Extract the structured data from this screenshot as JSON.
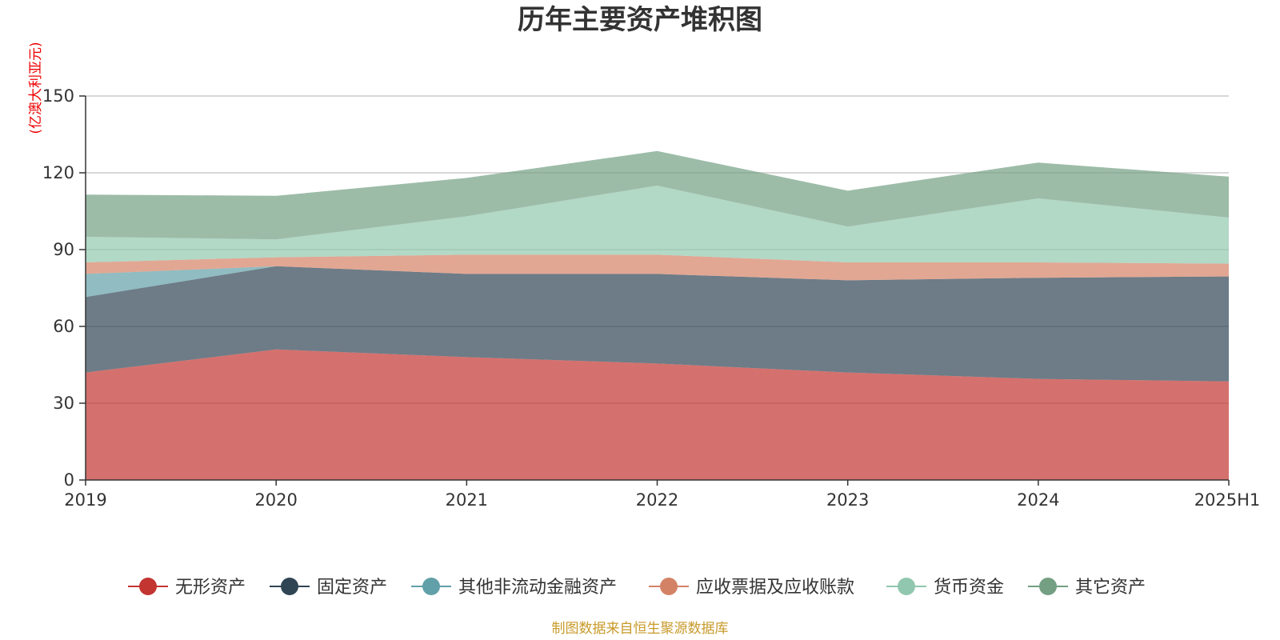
{
  "chart_data": {
    "type": "area",
    "stacked": true,
    "title": "历年主要资产堆积图",
    "ylabel": "(亿澳大利亚元)",
    "x": [
      "2019",
      "2020",
      "2021",
      "2022",
      "2023",
      "2024",
      "2025H1"
    ],
    "ylim": [
      0,
      150
    ],
    "yticks": [
      0,
      30,
      60,
      90,
      120,
      150
    ],
    "grid": true,
    "legend_position": "bottom",
    "series": [
      {
        "name": "无形资产",
        "values": [
          42,
          51,
          48,
          45.5,
          42,
          39.5,
          38.5
        ],
        "color": "#c23531"
      },
      {
        "name": "固定资产",
        "values": [
          29.5,
          32.5,
          32.5,
          35,
          36,
          39.5,
          41
        ],
        "color": "#2f4554"
      },
      {
        "name": "其他非流动金融资产",
        "values": [
          9,
          0,
          0,
          0,
          0,
          0,
          0
        ],
        "color": "#61a0a8"
      },
      {
        "name": "应收票据及应收账款",
        "values": [
          4.5,
          3.5,
          7.5,
          7.5,
          7,
          6,
          5
        ],
        "color": "#d48265"
      },
      {
        "name": "货币资金",
        "values": [
          10,
          7,
          15,
          27,
          14,
          25,
          18
        ],
        "color": "#91c7ae"
      },
      {
        "name": "其它资产",
        "values": [
          16.5,
          17,
          15,
          13.5,
          14,
          14,
          16
        ],
        "color": "#749f83"
      }
    ],
    "source": "制图数据来自恒生聚源数据库"
  }
}
